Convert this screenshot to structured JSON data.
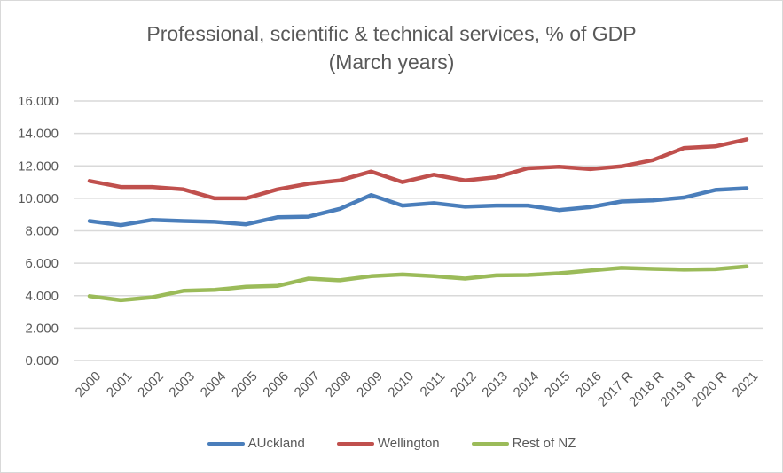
{
  "chart_data": {
    "type": "line",
    "title": "Professional, scientific & technical services, % of GDP",
    "subtitle": "(March years)",
    "xlabel": "",
    "ylabel": "",
    "ylim": [
      0,
      16
    ],
    "yticks": [
      "0.000",
      "2.000",
      "4.000",
      "6.000",
      "8.000",
      "10.000",
      "12.000",
      "14.000",
      "16.000"
    ],
    "ytick_values": [
      0,
      2,
      4,
      6,
      8,
      10,
      12,
      14,
      16
    ],
    "grid": true,
    "legend_position": "bottom",
    "categories": [
      "2000",
      "2001",
      "2002",
      "2003",
      "2004",
      "2005",
      "2006",
      "2007",
      "2008",
      "2009",
      "2010",
      "2011",
      "2012",
      "2013",
      "2014",
      "2015",
      "2016",
      "2017 R",
      "2018 R",
      "2019 R",
      "2020 R",
      "2021"
    ],
    "series": [
      {
        "name": "AUckland",
        "color": "#4a7ebb",
        "values": [
          8.6,
          8.35,
          8.67,
          8.6,
          8.55,
          8.4,
          8.83,
          8.87,
          9.35,
          10.2,
          9.55,
          9.7,
          9.48,
          9.55,
          9.55,
          9.27,
          9.45,
          9.8,
          9.87,
          10.05,
          10.52,
          10.62
        ]
      },
      {
        "name": "Wellington",
        "color": "#c0504d",
        "values": [
          11.07,
          10.7,
          10.7,
          10.55,
          10.0,
          10.0,
          10.55,
          10.9,
          11.1,
          11.65,
          11.0,
          11.45,
          11.1,
          11.3,
          11.85,
          11.95,
          11.8,
          11.97,
          12.35,
          13.1,
          13.2,
          13.63
        ]
      },
      {
        "name": "Rest of NZ",
        "color": "#9bbb59",
        "values": [
          3.97,
          3.72,
          3.9,
          4.3,
          4.35,
          4.55,
          4.6,
          5.05,
          4.95,
          5.2,
          5.3,
          5.2,
          5.05,
          5.25,
          5.27,
          5.38,
          5.55,
          5.71,
          5.65,
          5.6,
          5.63,
          5.8
        ]
      }
    ]
  }
}
